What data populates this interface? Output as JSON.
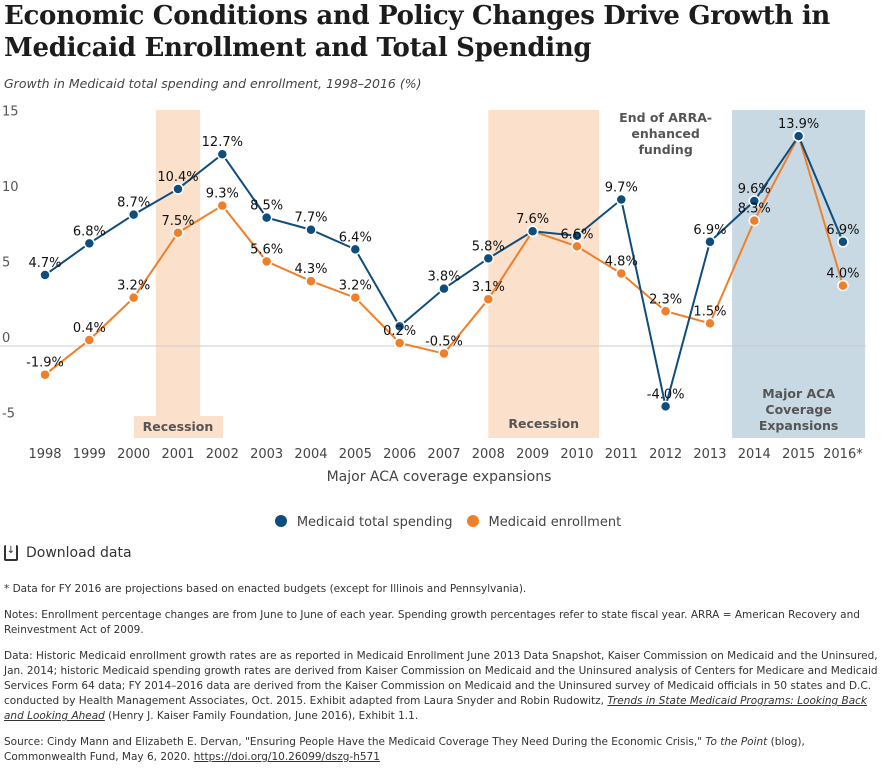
{
  "title": "Economic Conditions and Policy Changes Drive Growth in Medicaid Enrollment and Total Spending",
  "subtitle": "Growth in Medicaid total spending and enrollment, 1998–2016 (%)",
  "chart_data": {
    "type": "line",
    "x": [
      "1998",
      "1999",
      "2000",
      "2001",
      "2002",
      "2003",
      "2004",
      "2005",
      "2006",
      "2007",
      "2008",
      "2009",
      "2010",
      "2011",
      "2012",
      "2013",
      "2014",
      "2015",
      "2016*"
    ],
    "xlabel": "Major ACA coverage expansions",
    "ylim": [
      -6,
      15
    ],
    "yticks": [
      15,
      10,
      5,
      0,
      -5
    ],
    "grid": "zero line only",
    "legend_position": "bottom",
    "series": [
      {
        "name": "Medicaid total spending",
        "color": "#0f4d7c",
        "values": [
          4.7,
          6.8,
          8.7,
          10.4,
          12.7,
          8.5,
          7.7,
          6.4,
          1.3,
          3.8,
          5.8,
          7.6,
          7.3,
          9.7,
          -4.0,
          6.9,
          9.6,
          13.9,
          6.9
        ],
        "labels": [
          "4.7%",
          "6.8%",
          "8.7%",
          "10.4%",
          "12.7%",
          "8.5%",
          "7.7%",
          "6.4%",
          null,
          "3.8%",
          "5.8%",
          null,
          null,
          "9.7%",
          "-4.0%",
          "6.9%",
          "9.6%",
          null,
          "6.9%"
        ]
      },
      {
        "name": "Medicaid enrollment",
        "color": "#f07f29",
        "values": [
          -1.9,
          0.4,
          3.2,
          7.5,
          9.3,
          5.6,
          4.3,
          3.2,
          0.2,
          -0.5,
          3.1,
          7.6,
          6.6,
          4.8,
          2.3,
          1.5,
          8.3,
          13.9,
          4.0
        ],
        "labels": [
          "-1.9%",
          "0.4%",
          "3.2%",
          "7.5%",
          "9.3%",
          "5.6%",
          "4.3%",
          "3.2%",
          "0.2%",
          "-0.5%",
          "3.1%",
          "7.6%",
          "6.6%",
          "4.8%",
          "2.3%",
          "1.5%",
          "8.3%",
          "13.9%",
          "4.0%"
        ]
      }
    ],
    "bands": [
      {
        "label": "Recession",
        "from": 2000.5,
        "to": 2001.5,
        "color": "#fbe0cc"
      },
      {
        "label": "Recession",
        "from": 2008,
        "to": 2010.5,
        "color": "#fbe0cc"
      },
      {
        "label": "Major ACA Coverage Expansions",
        "from": 2013.5,
        "to": 2016.5,
        "color": "#c9d9e4"
      }
    ],
    "annotations": [
      {
        "text": "End of ARRA- enhanced funding",
        "x": 2012
      }
    ]
  },
  "download_label": "Download data",
  "notes": {
    "footnote": "* Data for FY 2016 are projections based on enacted budgets (except for Illinois and Pennsylvania).",
    "notes": "Notes: Enrollment percentage changes are from June to June of each year. Spending growth percentages refer to state fiscal year. ARRA = American Recovery and Reinvestment Act of 2009.",
    "data_pre": "Data: Historic Medicaid enrollment growth rates are as reported in Medicaid Enrollment June 2013 Data Snapshot, Kaiser Commission on Medicaid and the Uninsured, Jan. 2014; historic Medicaid spending growth rates are derived from Kaiser Commission on Medicaid and the Uninsured analysis of Centers for Medicare and Medicaid Services Form 64 data; FY 2014–2016 data are derived from the Kaiser Commission on Medicaid and the Uninsured survey of Medicaid officials in 50 states and D.C. conducted by Health Management Associates, Oct. 2015. Exhibit adapted from Laura Snyder and Robin Rudowitz, ",
    "data_link": "Trends in State Medicaid Programs: Looking Back and Looking Ahead",
    "data_post": " (Henry J. Kaiser Family Foundation, June 2016), Exhibit 1.1.",
    "source_pre": "Source: Cindy Mann and Elizabeth E. Dervan, \"Ensuring People Have the Medicaid Coverage They Need During the Economic Crisis,\" ",
    "source_pub": "To the Point",
    "source_mid": " (blog), Commonwealth Fund, May 6, 2020. ",
    "source_link": "https://doi.org/10.26099/dszg-h571"
  }
}
